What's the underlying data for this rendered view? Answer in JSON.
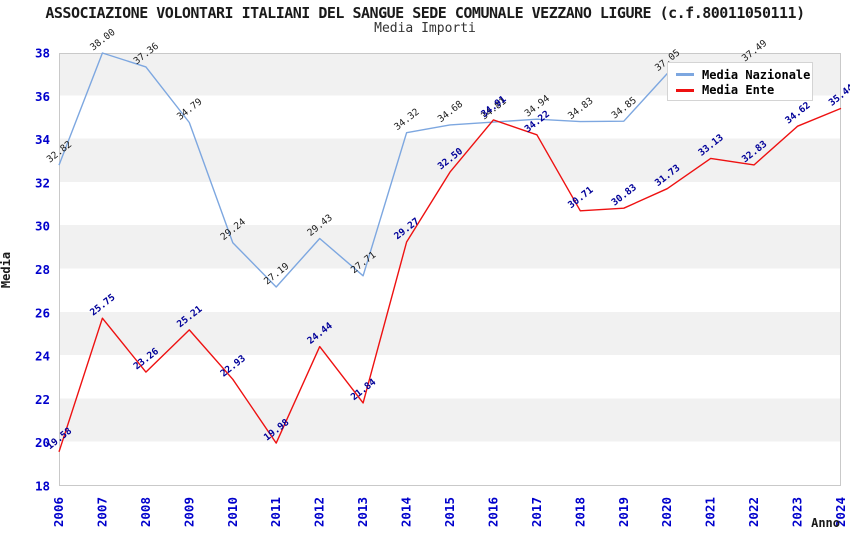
{
  "title": "ASSOCIAZIONE VOLONTARI ITALIANI DEL SANGUE SEDE COMUNALE VEZZANO LIGURE (c.f.80011050111)",
  "subtitle": "Media Importi",
  "axes": {
    "xlabel": "Anno",
    "ylabel": "Media"
  },
  "colors": {
    "tick_label": "#0000cc",
    "nazionale_line": "#7da7e0",
    "ente_line": "#ee1111",
    "nazionale_value_label": "#1a1a1a",
    "ente_value_label": "#000099",
    "band_gray": "#f1f1f1",
    "plot_border": "#c9c9c9"
  },
  "legend": {
    "items": [
      {
        "label": "Media Nazionale",
        "color": "#7da7e0"
      },
      {
        "label": "Media Ente",
        "color": "#ee1111"
      }
    ]
  },
  "chart_data": {
    "type": "line",
    "title": "ASSOCIAZIONE VOLONTARI ITALIANI DEL SANGUE SEDE COMUNALE VEZZANO LIGURE (c.f.80011050111)",
    "subtitle": "Media Importi",
    "xlabel": "Anno",
    "ylabel": "Media",
    "ylim": [
      18,
      38
    ],
    "y_ticks": [
      18,
      20,
      22,
      24,
      26,
      28,
      30,
      32,
      34,
      36,
      38
    ],
    "grid": "alternating-horizontal-bands",
    "legend_position": "top-right",
    "x": [
      2006,
      2007,
      2008,
      2009,
      2010,
      2011,
      2012,
      2013,
      2014,
      2015,
      2016,
      2017,
      2018,
      2019,
      2020,
      2021,
      2022,
      2023,
      2024
    ],
    "series": [
      {
        "name": "Media Nazionale",
        "color": "#7da7e0",
        "label_color": "#1a1a1a",
        "label_bold": false,
        "values": [
          32.82,
          38.0,
          37.36,
          34.79,
          29.24,
          27.19,
          29.43,
          27.71,
          34.32,
          34.68,
          34.81,
          34.94,
          34.83,
          34.85,
          37.05,
          37.3,
          37.49,
          null,
          null
        ],
        "point_labels": [
          "32.82",
          "38.00",
          "37.36",
          "34.79",
          "29.24",
          "27.19",
          "29.43",
          "27.71",
          "34.32",
          "34.68",
          "34.81",
          "34.94",
          "34.83",
          "34.85",
          "37.05",
          "",
          "37.49",
          "",
          ""
        ]
      },
      {
        "name": "Media Ente",
        "color": "#ee1111",
        "label_color": "#000099",
        "label_bold": true,
        "values": [
          19.58,
          25.75,
          23.26,
          25.21,
          22.93,
          19.98,
          24.44,
          21.84,
          29.27,
          32.5,
          34.91,
          34.22,
          30.71,
          30.83,
          31.73,
          33.13,
          32.83,
          34.62,
          35.44
        ],
        "point_labels": [
          "19.58",
          "25.75",
          "23.26",
          "25.21",
          "22.93",
          "19.98",
          "24.44",
          "21.84",
          "29.27",
          "32.50",
          "34.91",
          "34.22",
          "30.71",
          "30.83",
          "31.73",
          "33.13",
          "32.83",
          "34.62",
          "35.44"
        ]
      }
    ]
  }
}
